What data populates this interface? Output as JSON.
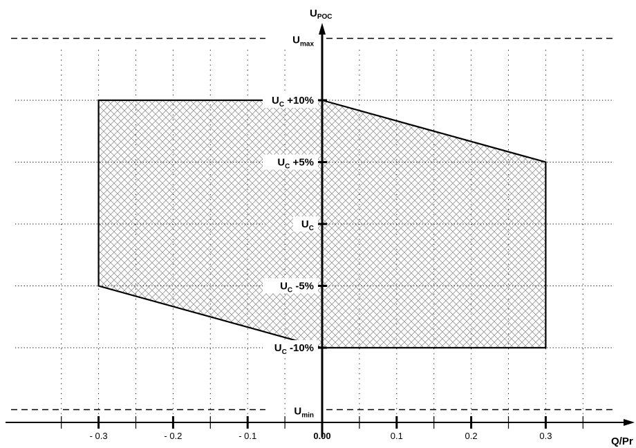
{
  "chart_data": {
    "type": "area",
    "title": "",
    "y_axis": {
      "label_main": "U",
      "label_sub": "POC"
    },
    "x_axis": {
      "label": "Q/Pr"
    },
    "xlim": [
      -0.43,
      0.42
    ],
    "ylim": [
      -18,
      19
    ],
    "x_ticks": [
      -0.3,
      -0.2,
      -0.1,
      0.0,
      0.1,
      0.2,
      0.3
    ],
    "x_tick_labels": [
      "- 0.3",
      "- 0.2",
      "- 0.1",
      "0.00",
      "0.1",
      "0.2",
      "0.3"
    ],
    "x_minor_ticks": [
      -0.35,
      -0.25,
      -0.15,
      -0.05,
      0.05,
      0.15,
      0.25,
      0.35
    ],
    "y_levels": [
      {
        "y": 15,
        "main": "U",
        "sub": "max",
        "suffix": "",
        "style": "dashed"
      },
      {
        "y": 10,
        "main": "U",
        "sub": "C",
        "suffix": " +10%",
        "style": "dotted"
      },
      {
        "y": 5,
        "main": "U",
        "sub": "C",
        "suffix": " +5%",
        "style": "dotted"
      },
      {
        "y": 0,
        "main": "U",
        "sub": "C",
        "suffix": "",
        "style": "dotted"
      },
      {
        "y": -5,
        "main": "U",
        "sub": "C",
        "suffix": " -5%",
        "style": "dotted"
      },
      {
        "y": -10,
        "main": "U",
        "sub": "C",
        "suffix": " -10%",
        "style": "dotted"
      },
      {
        "y": -15,
        "main": "U",
        "sub": "min",
        "suffix": "",
        "style": "dashed"
      }
    ],
    "regions": [
      {
        "name": "",
        "points": [
          [
            -0.3,
            10
          ],
          [
            0,
            10
          ],
          [
            0,
            -10
          ],
          [
            -0.3,
            -5
          ]
        ]
      },
      {
        "name": "",
        "points": [
          [
            0,
            10
          ],
          [
            0.3,
            5
          ],
          [
            0.3,
            -10
          ],
          [
            0,
            -10
          ]
        ]
      }
    ],
    "fill": "crosshatch",
    "grid": true,
    "colors": {
      "line": "#000000",
      "hatch": "#9a9a9a",
      "grid": "#000000"
    }
  }
}
